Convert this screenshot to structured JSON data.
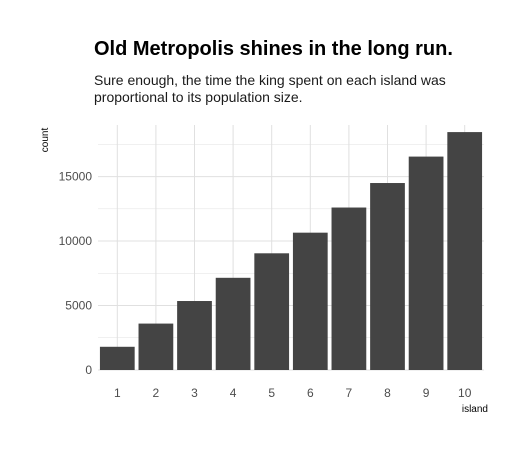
{
  "chart_data": {
    "type": "bar",
    "title": "Old Metropolis shines in the long run.",
    "subtitle": "Sure enough, the time the king spent on each island was proportional to its population size.",
    "xlabel": "island",
    "ylabel": "count",
    "categories": [
      "1",
      "2",
      "3",
      "4",
      "5",
      "6",
      "7",
      "8",
      "9",
      "10"
    ],
    "values": [
      1800,
      3600,
      5350,
      7150,
      9050,
      10650,
      12600,
      14500,
      16550,
      18450
    ],
    "ylim": [
      0,
      19000
    ],
    "yticks": [
      0,
      5000,
      10000,
      15000
    ],
    "ytick_labels": [
      "0",
      "5000",
      "10000",
      "15000"
    ],
    "grid": true,
    "bar_color": "#444444",
    "grid_color": "#e0e0e0"
  }
}
